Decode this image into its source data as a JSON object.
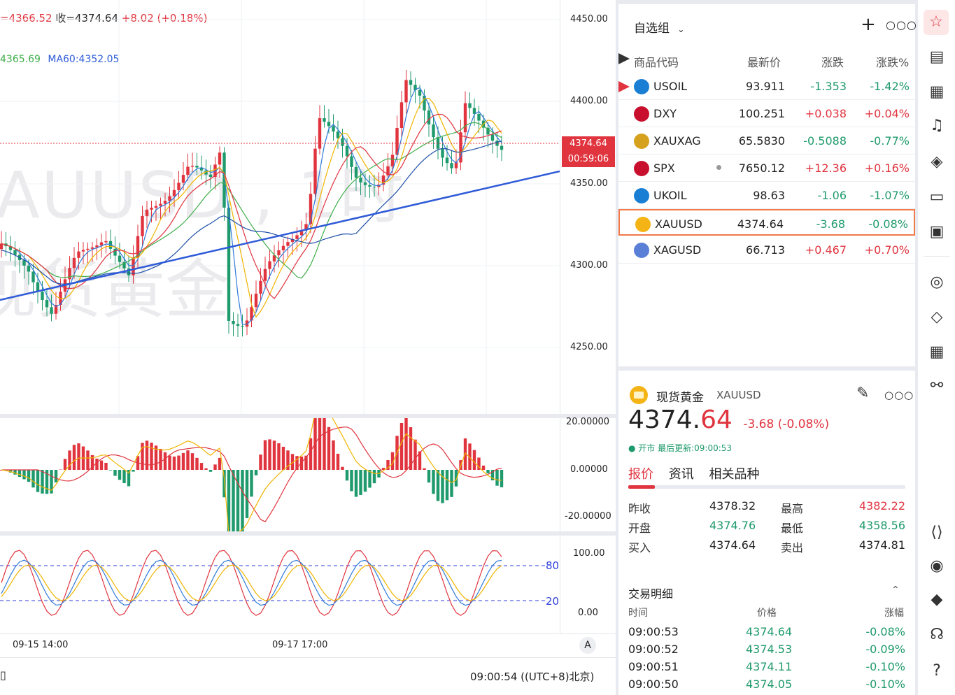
{
  "chart": {
    "ohlc_prefix": "=4366.52",
    "close_label": "收=4374.64",
    "change": "+8.02 (+0.18%)",
    "ma_a": "4365.69",
    "ma60": "MA60:4352.05",
    "watermark_symbol": "AUUSD , 1时",
    "watermark_name": "现货黄金",
    "price_ticks": [
      "4450.00",
      "4400.00",
      "4350.00",
      "4300.00",
      "4250.00"
    ],
    "last_price_tag": "4374.64",
    "countdown_tag": "00:59:06",
    "macd_ticks": [
      "20.00000",
      "0.00000",
      "-20.00000"
    ],
    "kdj_ticks": [
      "100.00",
      "0.00"
    ],
    "kdj_level_high": "80",
    "kdj_level_low": "20",
    "time_ticks": [
      "09-15 14:00",
      "09-17 17:00"
    ],
    "auto_button": "A",
    "clock": "09:00:54 ((UTC+8)北京)",
    "colors": {
      "up": "#e0343f",
      "down": "#1f9a6c",
      "trend": "#2f5bd8"
    }
  },
  "watchlist": {
    "group_label": "自选组",
    "headers": {
      "code": "商品代码",
      "last": "最新价",
      "chg": "涨跌",
      "pct": "涨跌%"
    },
    "rows": [
      {
        "sym": "USOIL",
        "last": "93.911",
        "chg": "-1.353",
        "pct": "-1.42%",
        "dir": "down",
        "icon": "oil-icon",
        "selected": false
      },
      {
        "sym": "DXY",
        "last": "100.251",
        "chg": "+0.038",
        "pct": "+0.04%",
        "dir": "up",
        "icon": "us-flag-icon",
        "selected": false
      },
      {
        "sym": "XAUXAG",
        "last": "65.5830",
        "chg": "-0.5088",
        "pct": "-0.77%",
        "dir": "down",
        "icon": "gold-silver-icon",
        "selected": false
      },
      {
        "sym": "SPX",
        "last": "7650.12",
        "chg": "+12.36",
        "pct": "+0.16%",
        "dir": "up",
        "icon": "us-flag-icon",
        "selected": false
      },
      {
        "sym": "UKOIL",
        "last": "98.63",
        "chg": "-1.06",
        "pct": "-1.07%",
        "dir": "down",
        "icon": "oil-icon",
        "selected": false
      },
      {
        "sym": "XAUUSD",
        "last": "4374.64",
        "chg": "-3.68",
        "pct": "-0.08%",
        "dir": "down",
        "icon": "gold-icon",
        "selected": true
      },
      {
        "sym": "XAGUSD",
        "last": "66.713",
        "chg": "+0.467",
        "pct": "+0.70%",
        "dir": "up",
        "icon": "silver-icon",
        "selected": false
      }
    ]
  },
  "detail": {
    "name": "现货黄金",
    "symbol": "XAUUSD",
    "price_main": "4374.",
    "price_tail": "64",
    "change": "-3.68 (-0.08%)",
    "status": "● 开市 最后更新:09:00:53",
    "tabs": [
      "报价",
      "资讯",
      "相关品种"
    ],
    "stats": [
      {
        "l1": "昨收",
        "v1": "4378.32",
        "l2": "最高",
        "v2": "4382.22"
      },
      {
        "l1": "开盘",
        "v1": "4374.76",
        "l2": "最低",
        "v2": "4358.56"
      },
      {
        "l1": "买入",
        "v1": "4374.64",
        "l2": "卖出",
        "v2": "4374.81"
      }
    ],
    "trades_title": "交易明细",
    "trade_headers": {
      "time": "时间",
      "price": "价格",
      "pct": "涨幅"
    },
    "trades": [
      {
        "time": "09:00:53",
        "price": "4374.64",
        "pct": "-0.08%"
      },
      {
        "time": "09:00:52",
        "price": "4374.53",
        "pct": "-0.09%"
      },
      {
        "time": "09:00:51",
        "price": "4374.11",
        "pct": "-0.10%"
      },
      {
        "time": "09:00:50",
        "price": "4374.05",
        "pct": "-0.10%"
      }
    ]
  }
}
